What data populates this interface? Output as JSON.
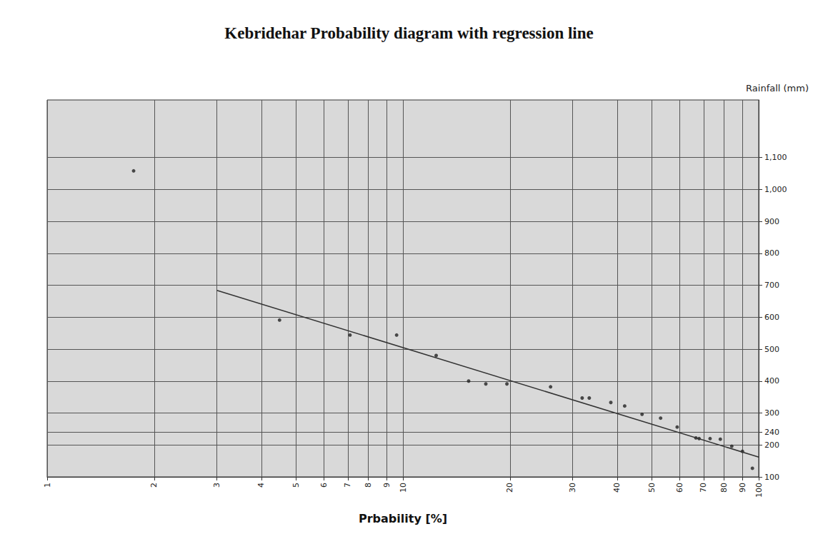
{
  "chart_data": {
    "type": "scatter",
    "title": "Kebridehar Probability diagram with regression line",
    "x_label": "Prbability [%]",
    "y_label": "Rainfall (mm)",
    "log": "x",
    "grid": true,
    "xlim": [
      1,
      100
    ],
    "xticks": [
      1,
      2,
      3,
      4,
      5,
      6,
      7,
      8,
      9,
      10,
      20,
      30,
      40,
      50,
      60,
      70,
      80,
      90,
      100
    ],
    "ylim": [
      100,
      1280
    ],
    "yticks": [
      100,
      200,
      240,
      300,
      400,
      500,
      600,
      700,
      800,
      900,
      {
        "value": 1000,
        "label": "1,000"
      },
      {
        "value": 1100,
        "label": "1,100"
      }
    ],
    "series": [
      {
        "type": "scatter",
        "color": "#222222",
        "marker": "circle",
        "x": [
          1.75,
          4.5,
          7.1,
          9.6,
          12.4,
          15.3,
          17.1,
          19.6,
          26,
          31.9,
          33.4,
          38.4,
          42,
          47,
          53,
          59,
          66.6,
          68,
          73,
          78,
          84,
          90,
          96
        ],
        "values": [
          1058,
          591,
          544,
          544,
          480,
          400,
          391,
          391,
          382,
          347,
          347,
          333,
          322,
          296,
          284,
          256,
          222,
          220,
          220,
          218,
          196,
          180,
          127
        ]
      },
      {
        "type": "line",
        "color": "#333333",
        "line_style": "solid",
        "x": [
          3,
          100
        ],
        "values": [
          684,
          162
        ]
      }
    ]
  }
}
